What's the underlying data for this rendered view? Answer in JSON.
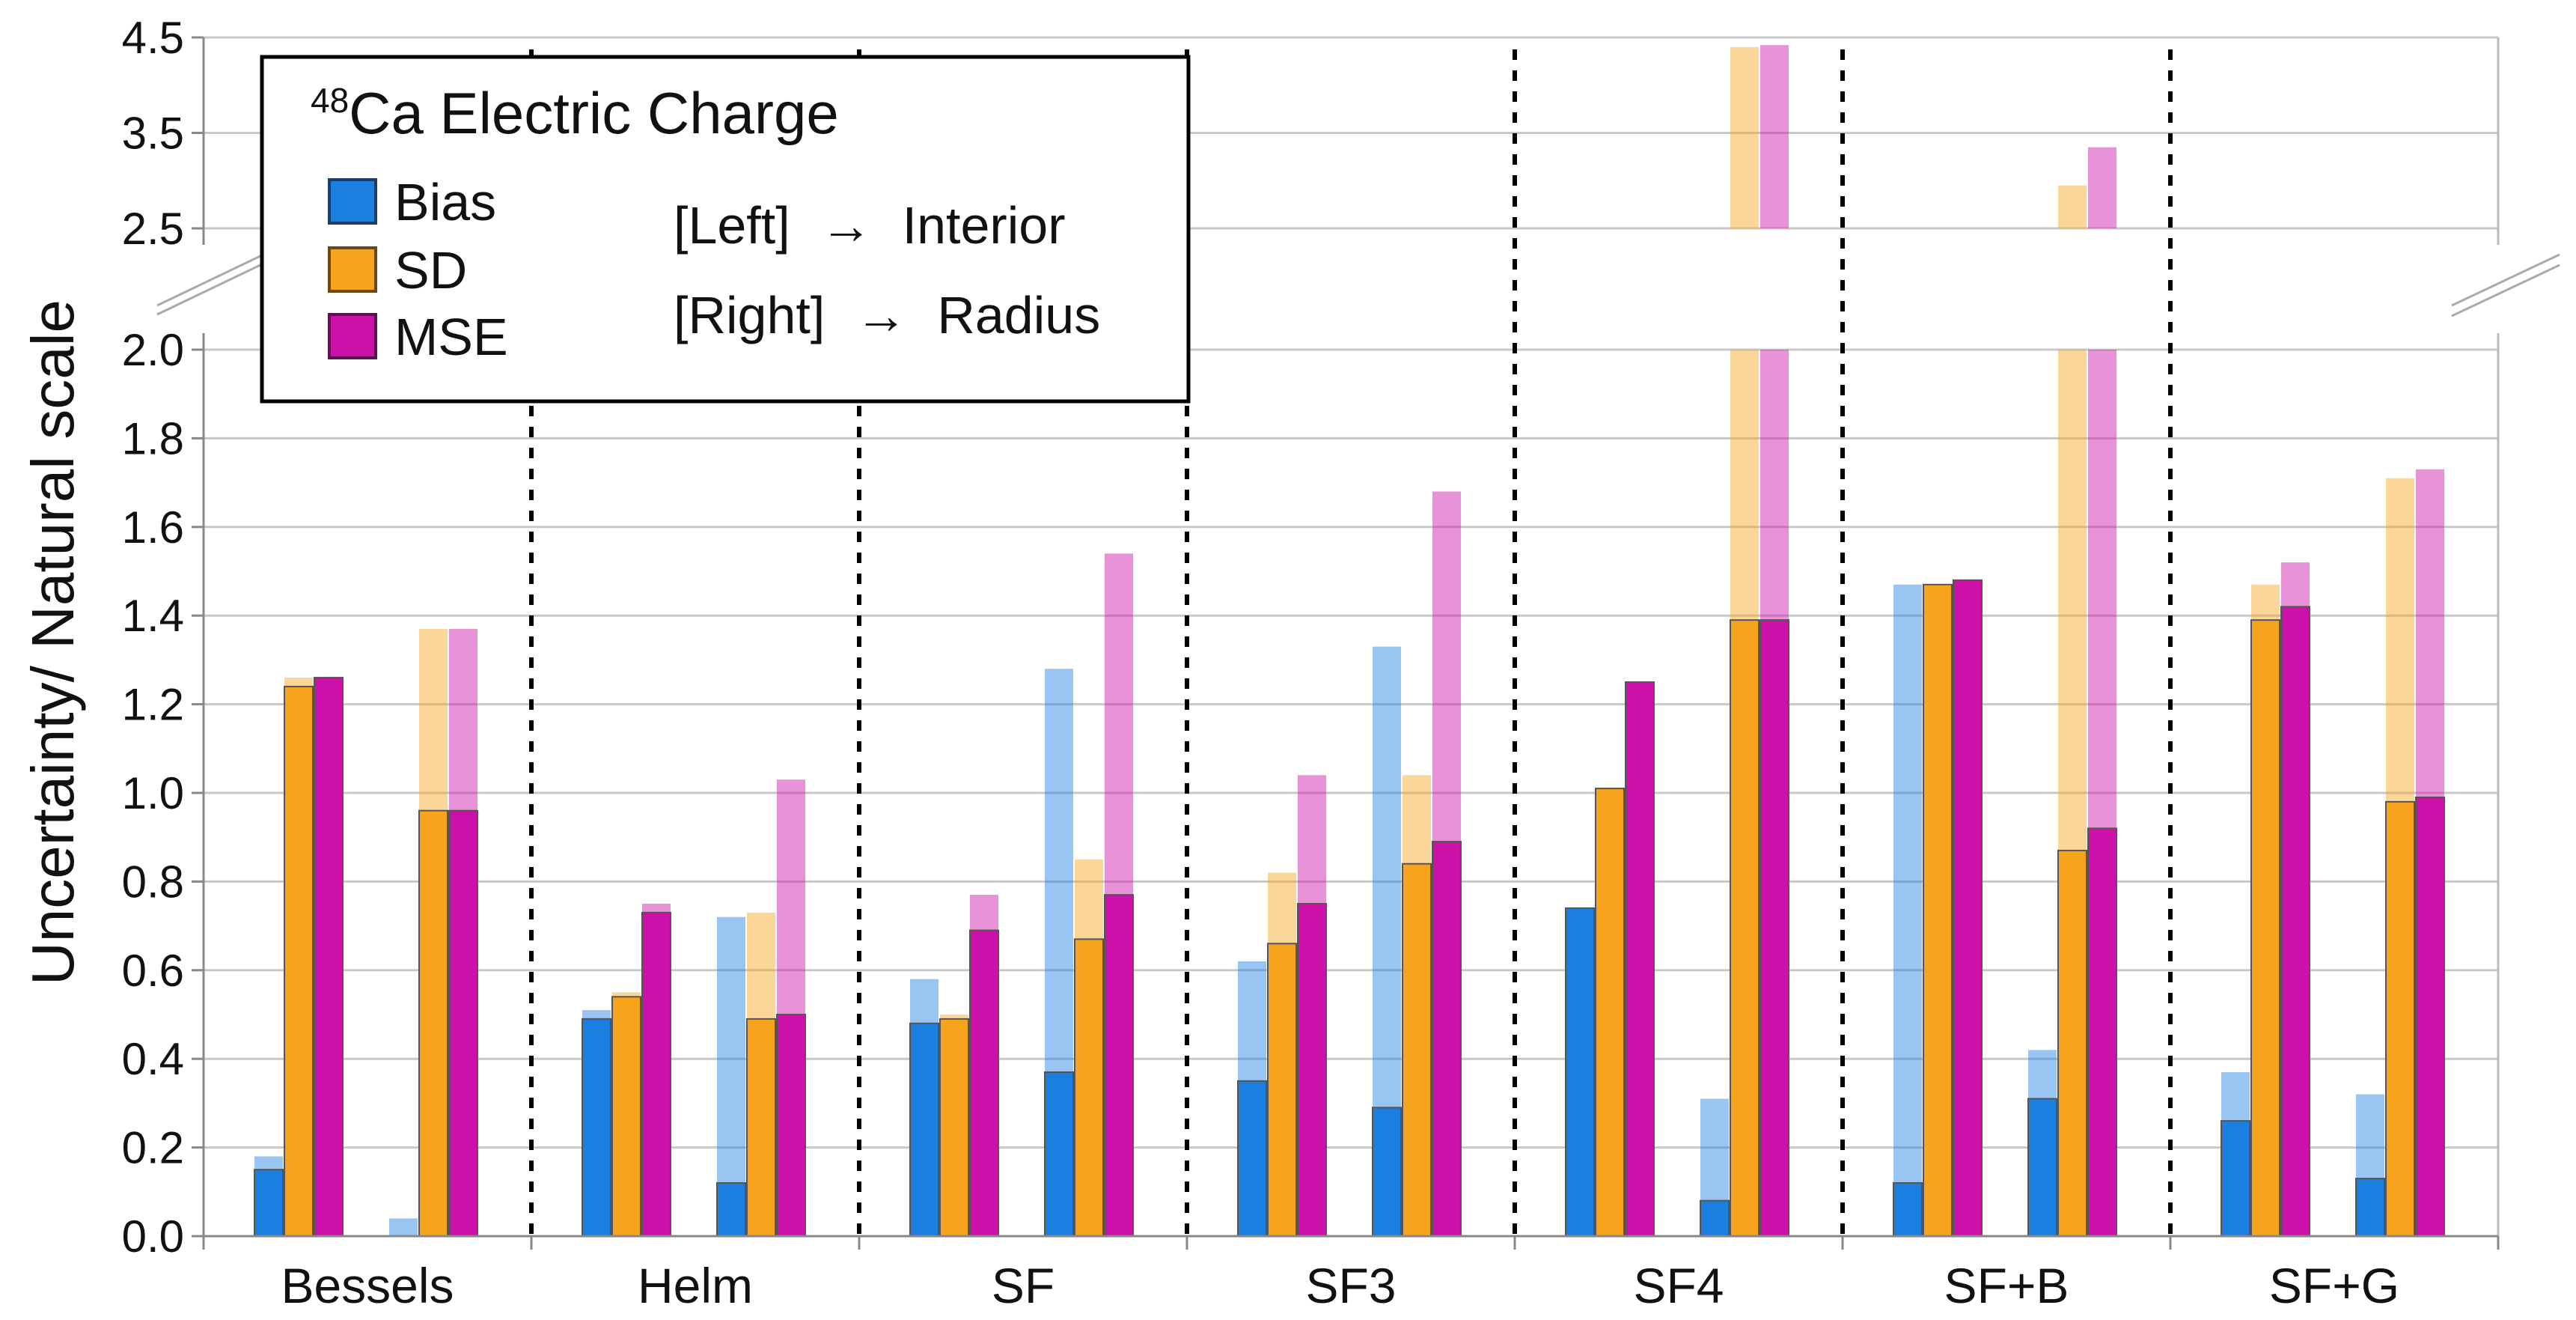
{
  "chart_data": {
    "type": "bar",
    "title_prefix": "48",
    "title_main": "Ca Electric Charge",
    "ylabel": "Uncertainty/ Natural scale",
    "xlabel": "",
    "ylim_lower": [
      0,
      2.0
    ],
    "ylim_upper": [
      2.5,
      4.5
    ],
    "yticks_lower": [
      "0.0",
      "0.2",
      "0.4",
      "0.6",
      "0.8",
      "1.0",
      "1.2",
      "1.4",
      "1.6",
      "1.8",
      "2.0"
    ],
    "yticks_upper": [
      "2.5",
      "3.5",
      "4.5"
    ],
    "grid": true,
    "legend_position": "top-left",
    "categories": [
      "Bessels",
      "Helm",
      "SF",
      "SF3",
      "SF4",
      "SF+B",
      "SF+G"
    ],
    "colors": {
      "Bias": "#1a7fdf",
      "SD": "#f7a31c",
      "MSE": "#cc10a8"
    },
    "legend": {
      "items": [
        {
          "key": "Bias",
          "label": "Bias"
        },
        {
          "key": "SD",
          "label": "SD"
        },
        {
          "key": "MSE",
          "label": "MSE"
        }
      ],
      "note_left": "[Left]",
      "note_left_target": "Interior",
      "note_right": "[Right]",
      "note_right_target": "Radius",
      "arrow": "→"
    },
    "series": [
      {
        "name": "Bias",
        "side": "Interior",
        "solid": [
          0.15,
          0.49,
          0.48,
          0.35,
          0.74,
          0.12,
          0.26
        ],
        "faded": [
          0.18,
          0.51,
          0.58,
          0.62,
          0.74,
          1.47,
          0.37
        ]
      },
      {
        "name": "SD",
        "side": "Interior",
        "solid": [
          1.24,
          0.54,
          0.49,
          0.66,
          1.01,
          1.47,
          1.39
        ],
        "faded": [
          1.26,
          0.55,
          0.5,
          0.82,
          1.01,
          1.47,
          1.47
        ]
      },
      {
        "name": "MSE",
        "side": "Interior",
        "solid": [
          1.26,
          0.73,
          0.69,
          0.75,
          1.25,
          1.48,
          1.42
        ],
        "faded": [
          1.26,
          0.75,
          0.77,
          1.04,
          1.25,
          1.48,
          1.52
        ]
      },
      {
        "name": "Bias",
        "side": "Radius",
        "solid": [
          0.0,
          0.12,
          0.37,
          0.29,
          0.08,
          0.31,
          0.13
        ],
        "faded": [
          0.04,
          0.72,
          1.28,
          1.33,
          0.31,
          0.42,
          0.32
        ]
      },
      {
        "name": "SD",
        "side": "Radius",
        "solid": [
          0.96,
          0.49,
          0.67,
          0.84,
          1.39,
          0.87,
          0.98
        ],
        "faded": [
          1.37,
          0.73,
          0.85,
          1.04,
          4.4,
          2.95,
          1.71
        ]
      },
      {
        "name": "MSE",
        "side": "Radius",
        "solid": [
          0.96,
          0.5,
          0.77,
          0.89,
          1.39,
          0.92,
          0.99
        ],
        "faded": [
          1.37,
          1.03,
          1.54,
          1.68,
          4.42,
          3.35,
          1.73
        ]
      }
    ]
  }
}
